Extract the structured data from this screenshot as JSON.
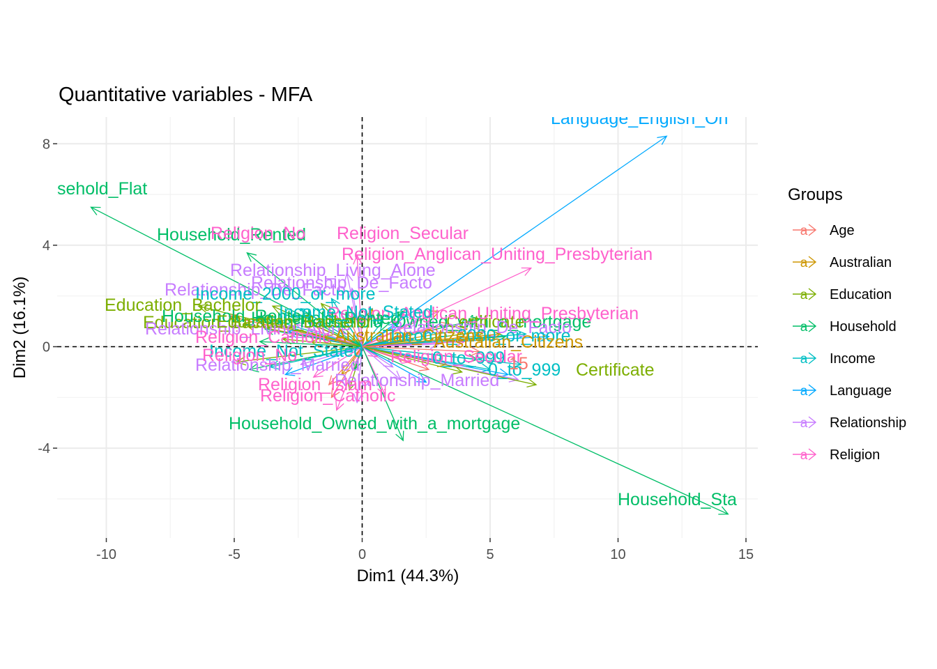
{
  "chart_data": {
    "type": "scatter",
    "title": "Quantitative variables - MFA",
    "xlabel": "Dim1 (44.3%)",
    "ylabel": "Dim2 (16.1%)",
    "xlim": [
      -12,
      15.5
    ],
    "ylim": [
      -7.4,
      9
    ],
    "xticks": [
      -10,
      -5,
      0,
      5,
      10,
      15
    ],
    "yticks": [
      8,
      4,
      0,
      -4
    ],
    "xtick_labels": [
      "-10",
      "-5",
      "0",
      "5",
      "10",
      "15"
    ],
    "ytick_labels": [
      "8",
      "4",
      "0",
      "-4"
    ],
    "grid": true,
    "legend_title": "Groups",
    "legend_position": "right",
    "groups": [
      {
        "name": "Age",
        "color": "#F8766D"
      },
      {
        "name": "Australian",
        "color": "#CD9600"
      },
      {
        "name": "Education",
        "color": "#7CAE00"
      },
      {
        "name": "Household",
        "color": "#00BE67"
      },
      {
        "name": "Income",
        "color": "#00BFC4"
      },
      {
        "name": "Language",
        "color": "#00A9FF"
      },
      {
        "name": "Relationship",
        "color": "#C77CFF"
      },
      {
        "name": "Religion",
        "color": "#FF61CC"
      }
    ],
    "vectors": [
      {
        "label": "Language_English_Only",
        "group": "Language",
        "x": 11.9,
        "y": 8.3
      },
      {
        "label": "Household_Flat",
        "group": "Household",
        "x": -10.6,
        "y": 5.5
      },
      {
        "label": "Household_Standalone",
        "group": "Household",
        "x": 14.3,
        "y": -6.6
      },
      {
        "label": "Household_Owned_with_a_mortgage",
        "group": "Household",
        "x": 1.6,
        "y": -3.7
      },
      {
        "label": "Household_Rented",
        "group": "Household",
        "x": -4.5,
        "y": 3.7
      },
      {
        "label": "Religion_No_Religion_Secular",
        "group": "Religion",
        "x": -0.2,
        "y": 3.6
      },
      {
        "label": "Religion_Anglican_Uniting_Presbyterian",
        "group": "Religion",
        "x": 6.6,
        "y": 3.1
      },
      {
        "label": "Religion_Catholic",
        "group": "Religion",
        "x": -1.0,
        "y": -2.5
      },
      {
        "label": "Relationship_Living_Alone",
        "group": "Relationship",
        "x": -0.6,
        "y": 2.9
      },
      {
        "label": "Relationship_De_Facto",
        "group": "Relationship",
        "x": -0.4,
        "y": 2.3
      },
      {
        "label": "Relationship_Married",
        "group": "Relationship",
        "x": 1.5,
        "y": -1.3
      },
      {
        "label": "Income_2000_or_more",
        "group": "Income",
        "x": -1.2,
        "y": 1.9
      },
      {
        "label": "Income_Not_Stated",
        "group": "Income",
        "x": -0.9,
        "y": 1.4
      },
      {
        "label": "Income_0_to_999",
        "group": "Income",
        "x": 6.2,
        "y": -0.7
      },
      {
        "label": "Education_Bachelor",
        "group": "Education",
        "x": -6.4,
        "y": 1.6
      },
      {
        "label": "Education_Certificate",
        "group": "Education",
        "x": 6.8,
        "y": -1.5
      },
      {
        "label": "Australian_Citizens",
        "group": "Australian",
        "x": 5.4,
        "y": 0.5
      },
      {
        "label": "Age_15",
        "group": "Age",
        "x": 4.6,
        "y": -0.2
      }
    ],
    "visible_text": {
      "language_english": "Language_English_On",
      "household_flat": "sehold_Flat",
      "household_standalone": "Household_Sta",
      "household_mortgage": "Household_Owned_with_a_mortgage",
      "household_rented": "Household_Rented",
      "religion_no": "Religion_No",
      "religion_secular": "Religion_Secular",
      "religion_anglican": "Religion_Anglican_Uniting_Presbyterian",
      "religion_catholic": "Religion_Catholic",
      "relationship_alone": "Relationship_Living_Alone",
      "relationship_defacto": "Relationship_De_Facto",
      "relationship_married": "Relationship_Married",
      "income_2000": "Income_2000_or_more",
      "income_notstated": "Income_Not_Stated",
      "income_999": "0_to_999",
      "education_bachelor": "Education_Bachelor",
      "education_certificate": "Certificate",
      "australian_citizens": "Australian_Citizens",
      "age_15": "15",
      "religion_islam": "Religion_Islam"
    }
  }
}
